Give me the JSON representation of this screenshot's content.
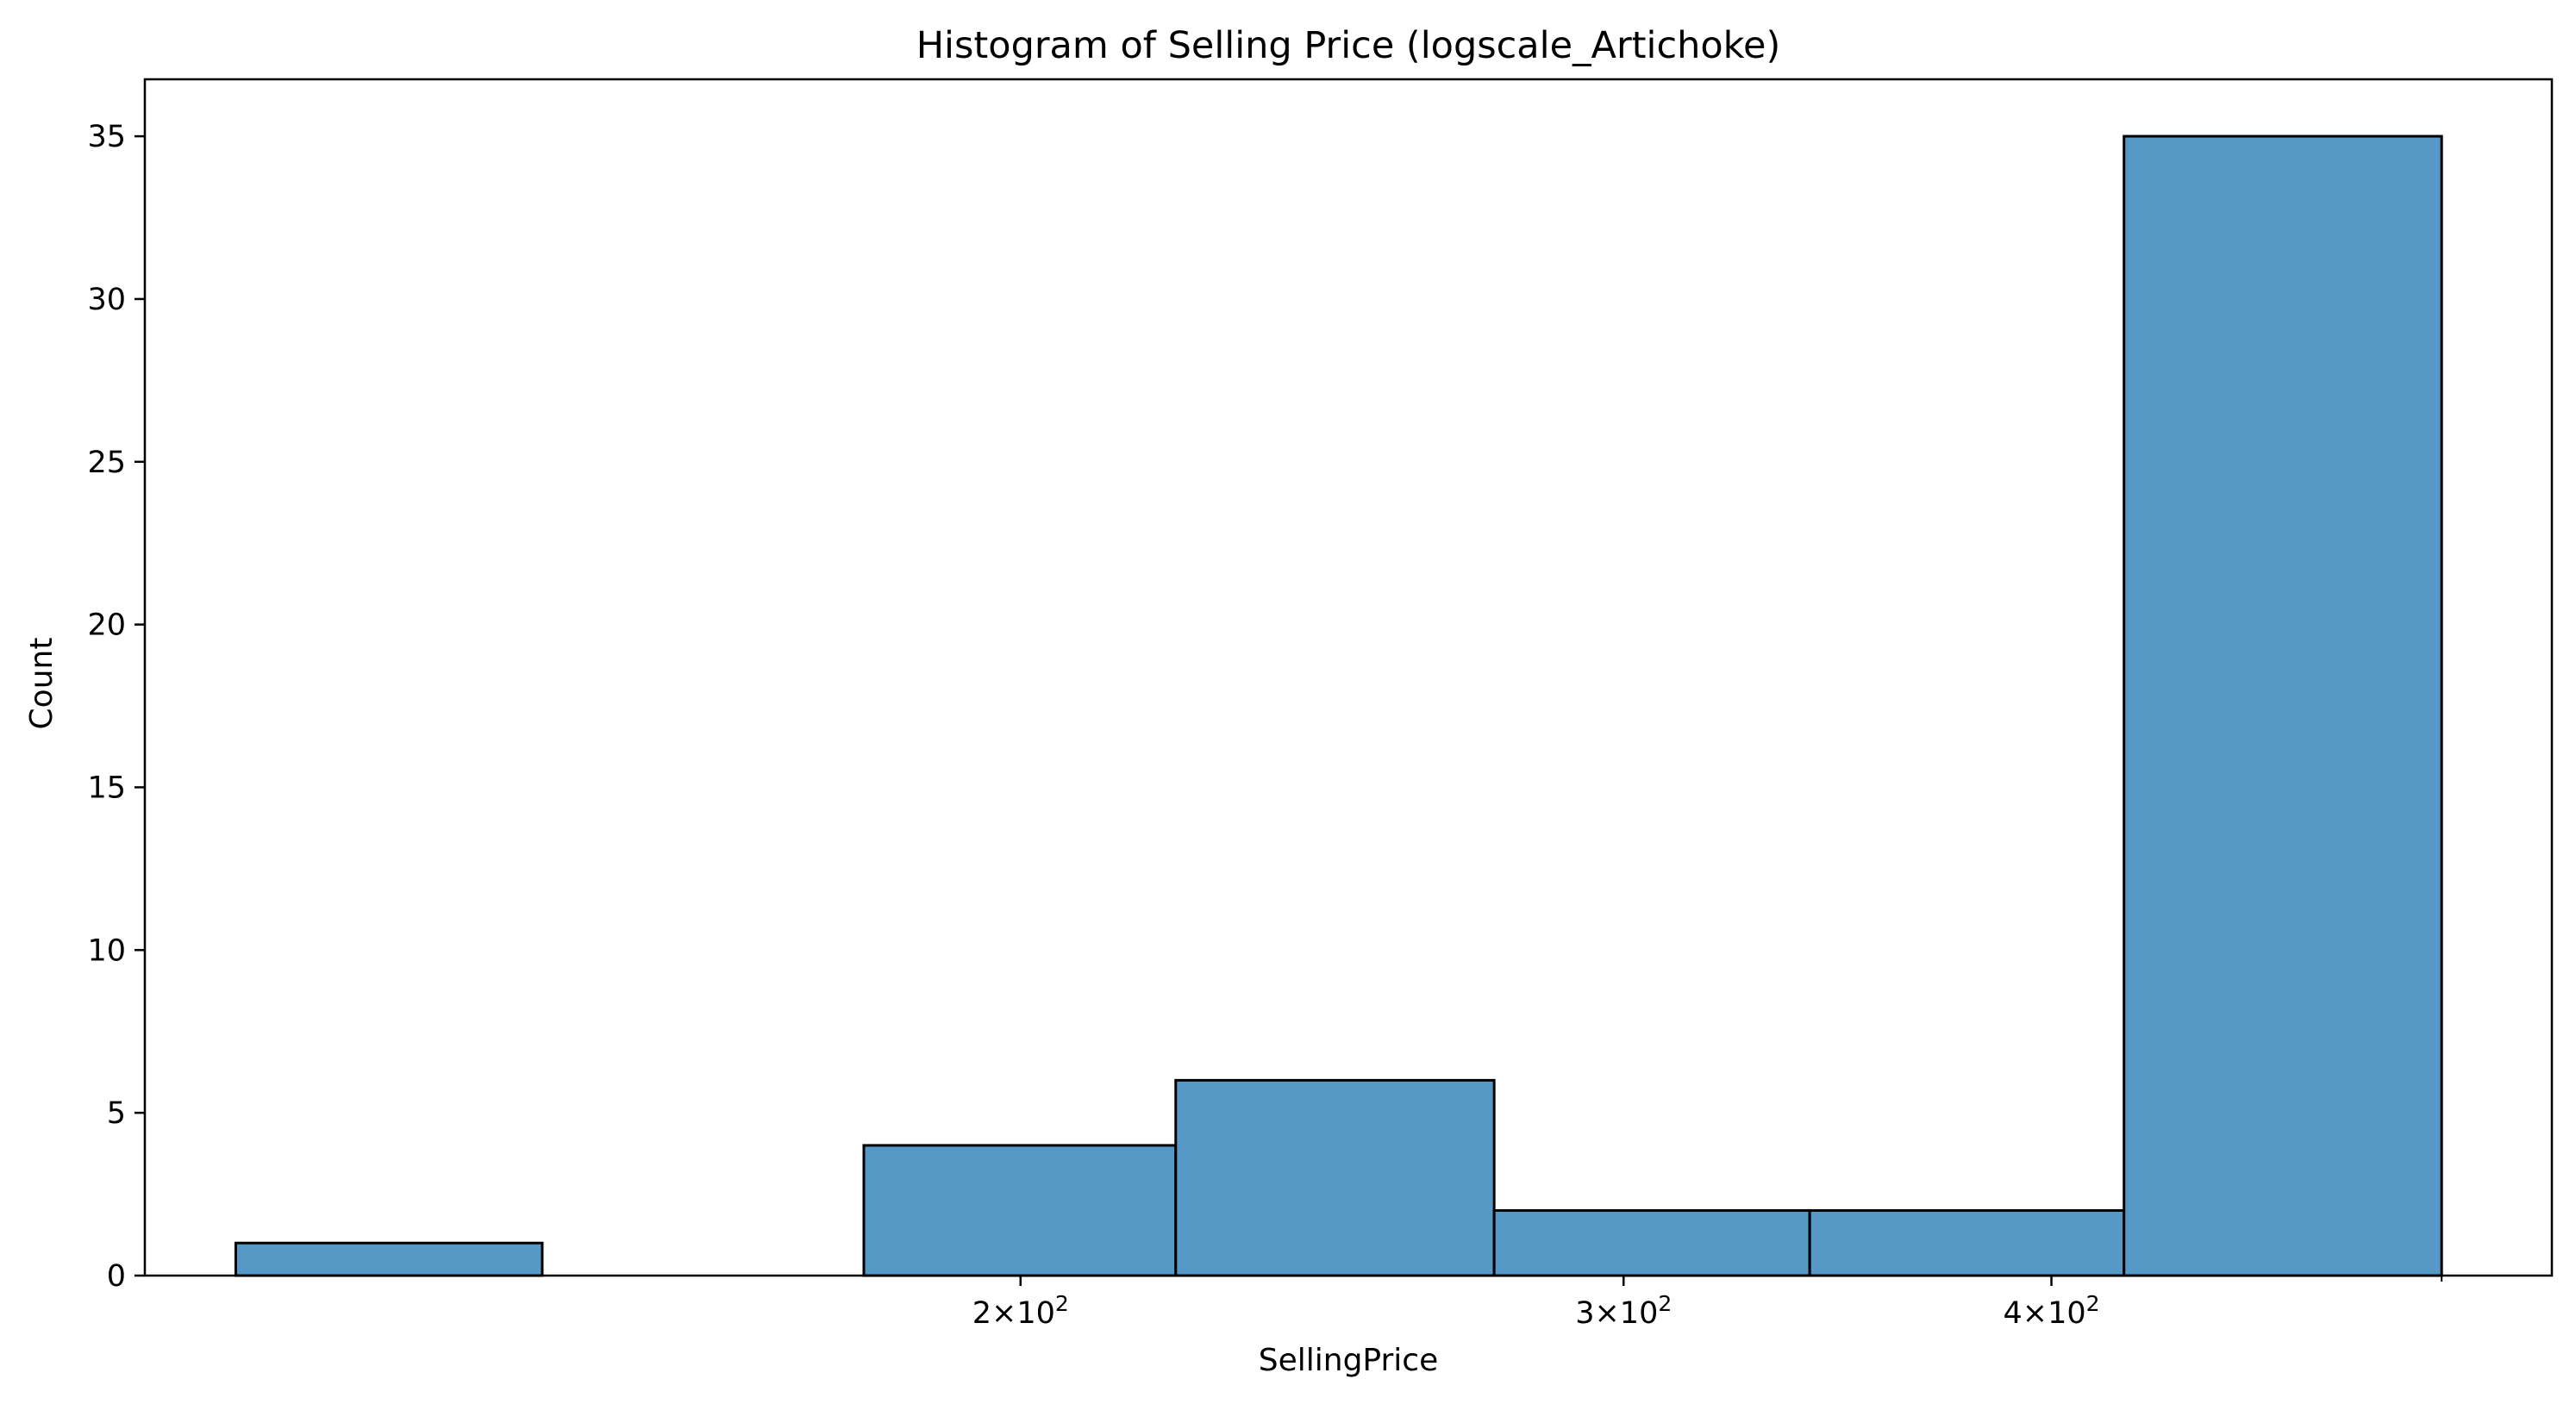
{
  "chart_data": {
    "type": "bar",
    "title": "Histogram of Selling Price (logscale_Artichoke)",
    "xlabel": "SellingPrice",
    "ylabel": "Count",
    "x_scale": "log",
    "xlim": [
      111,
      560
    ],
    "ylim": [
      0,
      36.75
    ],
    "grid": false,
    "bar_color": "#5799c6",
    "edge_color": "#000000",
    "bins": [
      {
        "x0": 118,
        "x1": 145,
        "count": 1
      },
      {
        "x0": 145,
        "x1": 180,
        "count": 0
      },
      {
        "x0": 180,
        "x1": 222,
        "count": 4
      },
      {
        "x0": 222,
        "x1": 275,
        "count": 6
      },
      {
        "x0": 275,
        "x1": 340,
        "count": 2
      },
      {
        "x0": 340,
        "x1": 420,
        "count": 2
      },
      {
        "x0": 420,
        "x1": 520,
        "count": 35
      }
    ],
    "x_ticks": [
      {
        "value": 200,
        "mantissa": "2",
        "base": "10",
        "exp": "2"
      },
      {
        "value": 300,
        "mantissa": "3",
        "base": "10",
        "exp": "2"
      },
      {
        "value": 400,
        "mantissa": "4",
        "base": "10",
        "exp": "2"
      }
    ],
    "x_minor_ticks": [
      520
    ],
    "y_ticks": [
      {
        "value": 0,
        "label": "0"
      },
      {
        "value": 5,
        "label": "5"
      },
      {
        "value": 10,
        "label": "10"
      },
      {
        "value": 15,
        "label": "15"
      },
      {
        "value": 20,
        "label": "20"
      },
      {
        "value": 25,
        "label": "25"
      },
      {
        "value": 30,
        "label": "30"
      },
      {
        "value": 35,
        "label": "35"
      }
    ]
  }
}
